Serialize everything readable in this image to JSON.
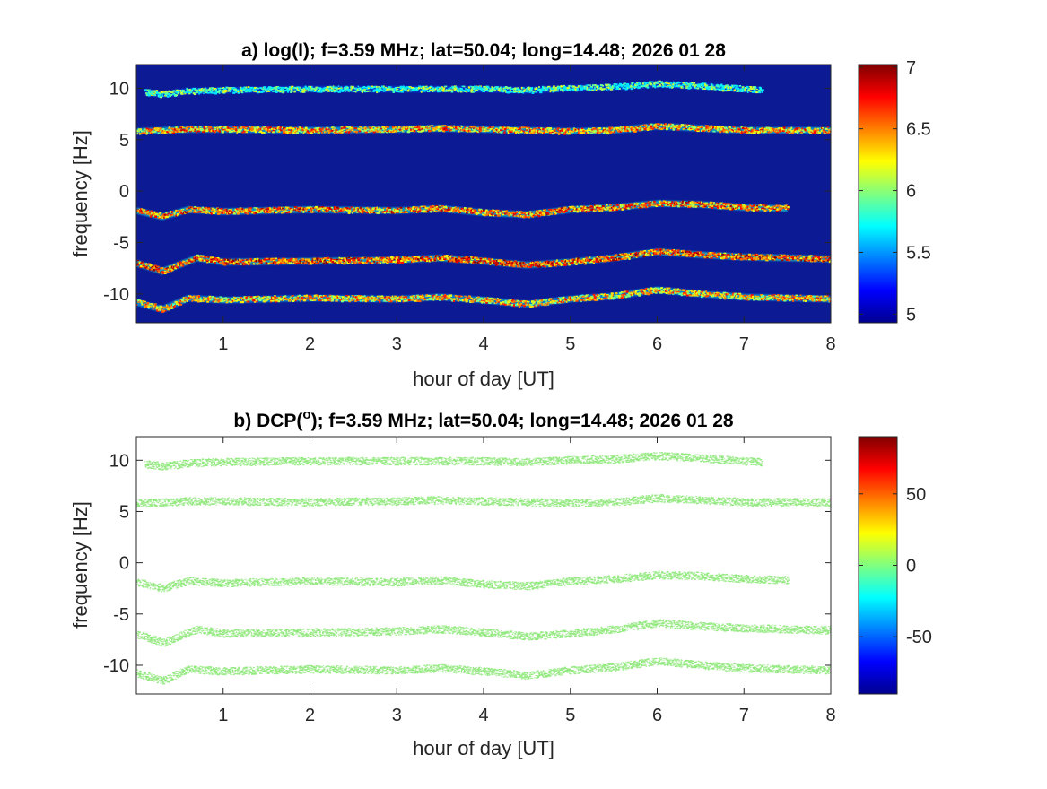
{
  "chart_data": [
    {
      "type": "heatmap",
      "title": "a) log(I); f=3.59 MHz;  lat=50.04; long=14.48; 2026 01 28",
      "xlabel": "hour of day [UT]",
      "ylabel": "frequency [Hz]",
      "xlim": [
        0,
        8
      ],
      "ylim": [
        -12.8,
        12.3
      ],
      "xticks": [
        "1",
        "2",
        "3",
        "4",
        "5",
        "6",
        "7",
        "8"
      ],
      "xtick_values": [
        1,
        2,
        3,
        4,
        5,
        6,
        7,
        8
      ],
      "yticks": [
        "10",
        "5",
        "0",
        "-5",
        "-10"
      ],
      "ytick_values": [
        10,
        5,
        0,
        -5,
        -10
      ],
      "colorbar": {
        "colormap": "jet",
        "range": [
          4.93,
          7.02
        ],
        "ticks": [
          "7",
          "6.5",
          "6",
          "5.5",
          "5"
        ],
        "tick_values": [
          7,
          6.5,
          6,
          5.5,
          5
        ]
      },
      "background": "#0c1a94",
      "traces": [
        {
          "x": [
            0.1,
            0.3,
            0.6,
            1,
            2,
            3,
            4,
            4.5,
            5,
            5.5,
            6,
            6.5,
            7,
            7.2
          ],
          "y": [
            9.6,
            9.4,
            9.7,
            9.8,
            9.9,
            9.9,
            9.9,
            9.8,
            10.0,
            10.1,
            10.4,
            10.2,
            9.9,
            9.8
          ],
          "intensity": 5.7
        },
        {
          "x": [
            0,
            0.3,
            0.6,
            1,
            2,
            3,
            3.5,
            4,
            4.5,
            5,
            5.5,
            6,
            6.5,
            7,
            8
          ],
          "y": [
            5.8,
            5.9,
            6.0,
            6.0,
            5.9,
            6.0,
            6.1,
            6.0,
            5.9,
            5.8,
            5.9,
            6.3,
            6.1,
            5.9,
            5.9
          ],
          "intensity": 6.3
        },
        {
          "x": [
            0,
            0.3,
            0.6,
            1,
            2,
            3,
            3.5,
            4,
            4.5,
            5,
            5.5,
            6,
            6.5,
            7,
            7.5
          ],
          "y": [
            -1.9,
            -2.5,
            -1.8,
            -2.0,
            -1.8,
            -1.9,
            -1.7,
            -2.1,
            -2.3,
            -1.8,
            -1.6,
            -1.2,
            -1.3,
            -1.6,
            -1.7
          ],
          "intensity": 6.4
        },
        {
          "x": [
            0,
            0.3,
            0.7,
            1,
            2,
            3,
            3.5,
            4,
            4.5,
            5,
            5.5,
            6,
            6.5,
            7,
            8
          ],
          "y": [
            -7.0,
            -7.8,
            -6.5,
            -6.9,
            -6.8,
            -6.7,
            -6.5,
            -6.8,
            -7.2,
            -6.9,
            -6.5,
            -5.9,
            -6.2,
            -6.4,
            -6.6
          ],
          "intensity": 6.5
        },
        {
          "x": [
            0,
            0.3,
            0.6,
            1,
            2,
            3,
            3.5,
            4,
            4.5,
            5,
            5.5,
            6,
            6.5,
            7,
            8
          ],
          "y": [
            -10.8,
            -11.5,
            -10.4,
            -10.6,
            -10.4,
            -10.5,
            -10.3,
            -10.6,
            -11.0,
            -10.5,
            -10.2,
            -9.6,
            -10.0,
            -10.3,
            -10.5
          ],
          "intensity": 6.2
        }
      ]
    },
    {
      "type": "heatmap",
      "title_main": "b) DCP(",
      "title_sup": "o",
      "title_rest": ");  f=3.59 MHz;  lat=50.04; long=14.48; 2026 01 28",
      "xlabel": "hour of day [UT]",
      "ylabel": "frequency [Hz]",
      "xlim": [
        0,
        8
      ],
      "ylim": [
        -12.8,
        12.3
      ],
      "xticks": [
        "1",
        "2",
        "3",
        "4",
        "5",
        "6",
        "7",
        "8"
      ],
      "xtick_values": [
        1,
        2,
        3,
        4,
        5,
        6,
        7,
        8
      ],
      "yticks": [
        "10",
        "5",
        "0",
        "-5",
        "-10"
      ],
      "ytick_values": [
        10,
        5,
        0,
        -5,
        -10
      ],
      "colorbar": {
        "colormap": "jet",
        "range": [
          -90,
          90
        ],
        "ticks": [
          "50",
          "0",
          "-50"
        ],
        "tick_values": [
          50,
          0,
          -50
        ]
      },
      "background": "#ffffff",
      "mark_color": "#8ee87a",
      "value_shown": 0,
      "traces": [
        {
          "x": [
            0.1,
            0.3,
            0.6,
            1,
            2,
            3,
            4,
            4.5,
            5,
            5.5,
            6,
            6.5,
            7,
            7.2
          ],
          "y": [
            9.6,
            9.4,
            9.7,
            9.8,
            9.9,
            9.9,
            9.9,
            9.8,
            10.0,
            10.1,
            10.4,
            10.2,
            9.9,
            9.8
          ]
        },
        {
          "x": [
            0,
            0.3,
            0.6,
            1,
            2,
            3,
            3.5,
            4,
            4.5,
            5,
            5.5,
            6,
            6.5,
            7,
            8
          ],
          "y": [
            5.8,
            5.9,
            6.0,
            6.0,
            5.9,
            6.0,
            6.1,
            6.0,
            5.9,
            5.8,
            5.9,
            6.3,
            6.1,
            5.9,
            5.9
          ]
        },
        {
          "x": [
            0,
            0.3,
            0.6,
            1,
            2,
            3,
            3.5,
            4,
            4.5,
            5,
            5.5,
            6,
            6.5,
            7,
            7.5
          ],
          "y": [
            -1.9,
            -2.5,
            -1.8,
            -2.0,
            -1.8,
            -1.9,
            -1.7,
            -2.1,
            -2.3,
            -1.8,
            -1.6,
            -1.2,
            -1.3,
            -1.6,
            -1.7
          ]
        },
        {
          "x": [
            0,
            0.3,
            0.7,
            1,
            2,
            3,
            3.5,
            4,
            4.5,
            5,
            5.5,
            6,
            6.5,
            7,
            8
          ],
          "y": [
            -7.0,
            -7.8,
            -6.5,
            -6.9,
            -6.8,
            -6.7,
            -6.5,
            -6.8,
            -7.2,
            -6.9,
            -6.5,
            -5.9,
            -6.2,
            -6.4,
            -6.6
          ]
        },
        {
          "x": [
            0,
            0.3,
            0.6,
            1,
            2,
            3,
            3.5,
            4,
            4.5,
            5,
            5.5,
            6,
            6.5,
            7,
            8
          ],
          "y": [
            -10.8,
            -11.5,
            -10.4,
            -10.6,
            -10.4,
            -10.5,
            -10.3,
            -10.6,
            -11.0,
            -10.5,
            -10.2,
            -9.6,
            -10.0,
            -10.3,
            -10.5
          ]
        }
      ]
    }
  ]
}
